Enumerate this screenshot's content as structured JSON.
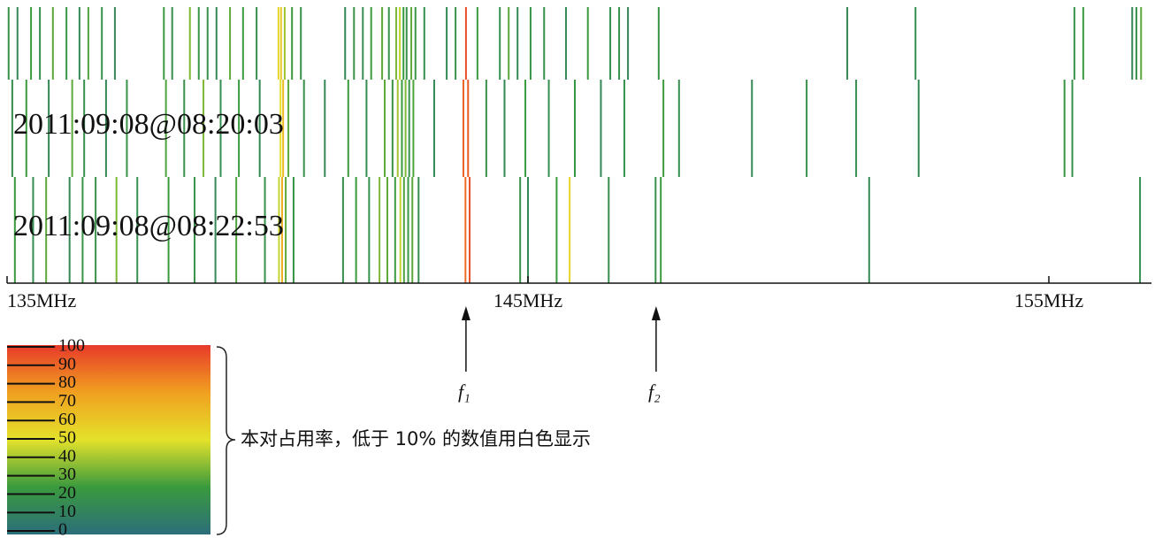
{
  "chart_data": {
    "type": "spectrum-occupancy",
    "xlim": [
      135,
      156.9
    ],
    "xticks": [
      {
        "value": 135,
        "label": "135MHz"
      },
      {
        "value": 145,
        "label": "145MHz"
      },
      {
        "value": 155,
        "label": "155MHz"
      }
    ],
    "rows": [
      {
        "label": null,
        "x": [
          135.03,
          135.2,
          135.46,
          135.63,
          135.88,
          136.14,
          136.39,
          136.56,
          136.82,
          137.07,
          138.01,
          138.17,
          138.51,
          138.68,
          138.85,
          139.02,
          139.28,
          139.53,
          139.79,
          140.21,
          140.26,
          140.33,
          140.47,
          140.64,
          141.49,
          141.66,
          141.83,
          141.99,
          142.2,
          142.33,
          142.47,
          142.54,
          142.61,
          142.67,
          142.76,
          142.84,
          143.01,
          143.44,
          143.61,
          143.81,
          144.03,
          144.46,
          144.63,
          144.8,
          145.05,
          145.31,
          145.73,
          146.15,
          146.58,
          146.75,
          146.92,
          147.51,
          151.13,
          152.44,
          155.49,
          155.66,
          156.6,
          156.68,
          156.77
        ],
        "values": [
          20,
          15,
          25,
          18,
          30,
          22,
          15,
          28,
          20,
          15,
          25,
          18,
          35,
          22,
          20,
          15,
          30,
          25,
          18,
          55,
          60,
          40,
          25,
          20,
          15,
          22,
          18,
          25,
          30,
          20,
          35,
          45,
          25,
          20,
          30,
          22,
          18,
          15,
          20,
          95,
          25,
          18,
          30,
          15,
          22,
          20,
          15,
          25,
          18,
          20,
          15,
          22,
          15,
          18,
          20,
          25,
          15,
          20,
          30
        ]
      },
      {
        "label": "2011:09:08@08:20:03",
        "x": [
          135.1,
          135.37,
          135.8,
          136.25,
          136.48,
          136.9,
          137.3,
          138.05,
          138.4,
          138.77,
          139.1,
          139.45,
          139.85,
          140.25,
          140.3,
          140.4,
          140.7,
          141.1,
          141.55,
          141.9,
          142.25,
          142.4,
          142.5,
          142.58,
          142.65,
          142.72,
          142.8,
          143.2,
          143.76,
          143.85,
          144.2,
          144.55,
          144.95,
          145.4,
          145.9,
          146.4,
          146.85,
          147.6,
          147.9,
          149.3,
          150.35,
          151.3,
          152.5,
          155.3,
          155.45
        ],
        "values": [
          18,
          25,
          15,
          30,
          20,
          15,
          22,
          28,
          20,
          35,
          18,
          25,
          15,
          50,
          65,
          30,
          20,
          15,
          25,
          18,
          30,
          22,
          40,
          25,
          35,
          20,
          28,
          15,
          90,
          92,
          20,
          15,
          25,
          18,
          22,
          15,
          20,
          25,
          18,
          15,
          20,
          18,
          15,
          22,
          20
        ]
      },
      {
        "label": "2011:09:08@08:22:53",
        "x": [
          135.15,
          135.5,
          135.75,
          136.2,
          136.45,
          136.7,
          137.1,
          137.5,
          138.1,
          138.6,
          139.0,
          139.4,
          139.95,
          140.22,
          140.28,
          140.35,
          140.5,
          141.45,
          141.7,
          141.95,
          142.15,
          142.3,
          142.45,
          142.55,
          142.62,
          142.7,
          142.78,
          142.9,
          143.8,
          143.88,
          144.85,
          145.0,
          145.55,
          145.8,
          146.55,
          147.45,
          147.55,
          151.55,
          156.75
        ],
        "values": [
          25,
          18,
          30,
          15,
          22,
          20,
          35,
          18,
          25,
          20,
          15,
          28,
          20,
          45,
          70,
          30,
          22,
          18,
          25,
          20,
          35,
          30,
          25,
          45,
          28,
          22,
          30,
          18,
          88,
          94,
          20,
          15,
          25,
          55,
          18,
          20,
          25,
          15,
          18
        ]
      }
    ],
    "colormap": [
      {
        "value": 0,
        "color": "#2c6e7a"
      },
      {
        "value": 25,
        "color": "#3a9a3e"
      },
      {
        "value": 50,
        "color": "#e4e22a"
      },
      {
        "value": 75,
        "color": "#f0a020"
      },
      {
        "value": 100,
        "color": "#e83a2a"
      }
    ],
    "colorbar_ticks": [
      0,
      10,
      20,
      30,
      40,
      50,
      60,
      70,
      80,
      90,
      100
    ],
    "colorbar_caption": "本对占用率，低于 10% 的数值用白色显示",
    "annotations": [
      {
        "label": "f₁",
        "x": 143.81
      },
      {
        "label": "f₂",
        "x": 147.46
      }
    ]
  }
}
